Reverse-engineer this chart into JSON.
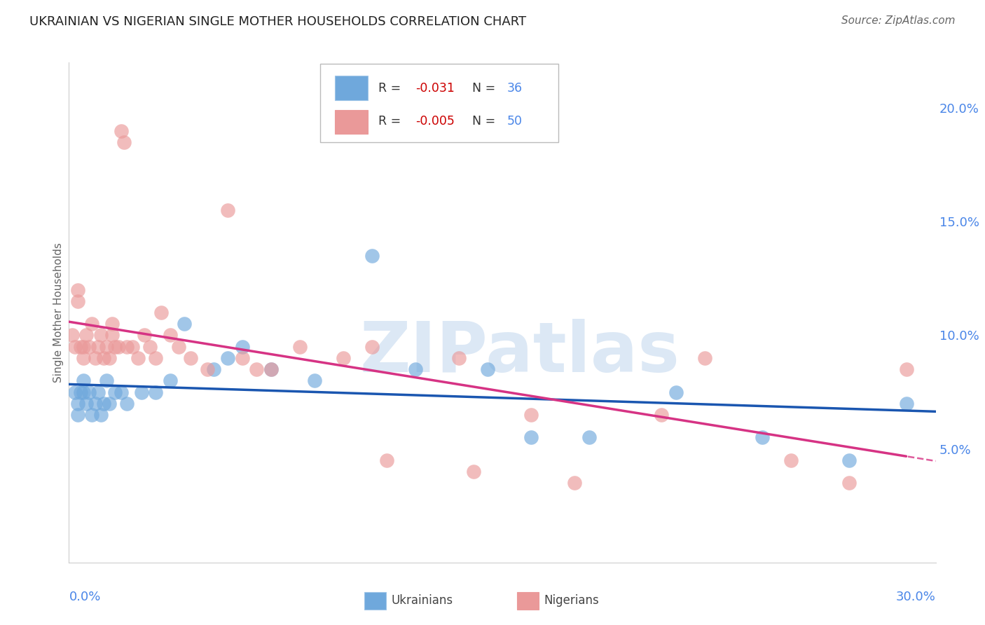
{
  "title": "UKRAINIAN VS NIGERIAN SINGLE MOTHER HOUSEHOLDS CORRELATION CHART",
  "source": "Source: ZipAtlas.com",
  "ylabel": "Single Mother Households",
  "xlim": [
    0.0,
    30.0
  ],
  "ylim": [
    0.0,
    22.0
  ],
  "yticks": [
    5.0,
    10.0,
    15.0,
    20.0
  ],
  "ytick_labels": [
    "5.0%",
    "10.0%",
    "15.0%",
    "20.0%"
  ],
  "legend_r_blue": "-0.031",
  "legend_n_blue": "36",
  "legend_r_pink": "-0.005",
  "legend_n_pink": "50",
  "blue_color": "#6fa8dc",
  "pink_color": "#ea9999",
  "blue_line_color": "#1a56b0",
  "pink_line_color": "#d63384",
  "grid_color": "#cccccc",
  "title_color": "#222222",
  "axis_label_color": "#4a86e8",
  "r_val_color": "#cc0000",
  "watermark_color": "#dce8f5",
  "ukrainians_x": [
    0.2,
    0.3,
    0.3,
    0.4,
    0.5,
    0.5,
    0.6,
    0.7,
    0.8,
    0.9,
    1.0,
    1.1,
    1.2,
    1.3,
    1.4,
    1.6,
    1.8,
    2.0,
    2.5,
    3.0,
    3.5,
    4.0,
    5.0,
    5.5,
    6.0,
    7.0,
    8.5,
    10.5,
    12.0,
    14.5,
    16.0,
    18.0,
    21.0,
    24.0,
    27.0,
    29.0
  ],
  "ukrainians_y": [
    7.5,
    6.5,
    7.0,
    7.5,
    7.5,
    8.0,
    7.0,
    7.5,
    6.5,
    7.0,
    7.5,
    6.5,
    7.0,
    8.0,
    7.0,
    7.5,
    7.5,
    7.0,
    7.5,
    7.5,
    8.0,
    10.5,
    8.5,
    9.0,
    9.5,
    8.5,
    8.0,
    13.5,
    8.5,
    8.5,
    5.5,
    5.5,
    7.5,
    5.5,
    4.5,
    7.0
  ],
  "nigerians_x": [
    0.1,
    0.2,
    0.3,
    0.3,
    0.4,
    0.5,
    0.5,
    0.6,
    0.7,
    0.8,
    0.9,
    1.0,
    1.1,
    1.2,
    1.3,
    1.4,
    1.5,
    1.5,
    1.6,
    1.7,
    1.8,
    1.9,
    2.0,
    2.2,
    2.4,
    2.6,
    2.8,
    3.0,
    3.2,
    3.5,
    3.8,
    4.2,
    4.8,
    5.5,
    6.0,
    6.5,
    7.0,
    8.0,
    9.5,
    10.5,
    11.0,
    13.5,
    14.0,
    16.0,
    17.5,
    20.5,
    22.0,
    25.0,
    27.0,
    29.0
  ],
  "nigerians_y": [
    10.0,
    9.5,
    11.5,
    12.0,
    9.5,
    9.5,
    9.0,
    10.0,
    9.5,
    10.5,
    9.0,
    9.5,
    10.0,
    9.0,
    9.5,
    9.0,
    10.0,
    10.5,
    9.5,
    9.5,
    19.0,
    18.5,
    9.5,
    9.5,
    9.0,
    10.0,
    9.5,
    9.0,
    11.0,
    10.0,
    9.5,
    9.0,
    8.5,
    15.5,
    9.0,
    8.5,
    8.5,
    9.5,
    9.0,
    9.5,
    4.5,
    9.0,
    4.0,
    6.5,
    3.5,
    6.5,
    9.0,
    4.5,
    3.5,
    8.5
  ]
}
